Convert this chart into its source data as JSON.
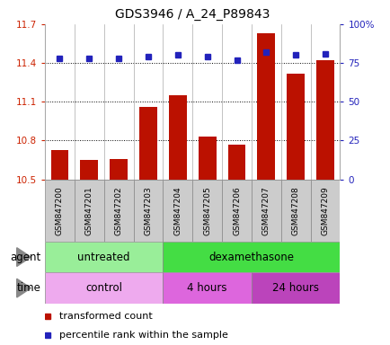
{
  "title": "GDS3946 / A_24_P89843",
  "samples": [
    "GSM847200",
    "GSM847201",
    "GSM847202",
    "GSM847203",
    "GSM847204",
    "GSM847205",
    "GSM847206",
    "GSM847207",
    "GSM847208",
    "GSM847209"
  ],
  "bar_values": [
    10.73,
    10.65,
    10.66,
    11.06,
    11.15,
    10.83,
    10.77,
    11.63,
    11.32,
    11.42
  ],
  "dot_values": [
    78,
    78,
    78,
    79,
    80,
    79,
    77,
    82,
    80,
    81
  ],
  "ylim": [
    10.5,
    11.7
  ],
  "y2lim": [
    0,
    100
  ],
  "yticks": [
    10.5,
    10.8,
    11.1,
    11.4,
    11.7
  ],
  "y2ticks": [
    0,
    25,
    50,
    75,
    100
  ],
  "ytick_labels": [
    "10.5",
    "10.8",
    "11.1",
    "11.4",
    "11.7"
  ],
  "y2tick_labels": [
    "0",
    "25",
    "50",
    "75",
    "100%"
  ],
  "bar_color": "#bb1100",
  "dot_color": "#2222bb",
  "agent_groups": [
    {
      "label": "untreated",
      "start": 0,
      "end": 4,
      "color": "#99ee99"
    },
    {
      "label": "dexamethasone",
      "start": 4,
      "end": 10,
      "color": "#44dd44"
    }
  ],
  "time_groups": [
    {
      "label": "control",
      "start": 0,
      "end": 4,
      "color": "#eeaaee"
    },
    {
      "label": "4 hours",
      "start": 4,
      "end": 7,
      "color": "#dd66dd"
    },
    {
      "label": "24 hours",
      "start": 7,
      "end": 10,
      "color": "#bb44bb"
    }
  ],
  "legend_items": [
    {
      "label": "transformed count",
      "color": "#bb1100"
    },
    {
      "label": "percentile rank within the sample",
      "color": "#2222bb"
    }
  ],
  "bar_bottom": 10.5,
  "title_fontsize": 10,
  "tick_fontsize": 7.5,
  "label_fontsize": 8.5,
  "sample_fontsize": 6.5
}
